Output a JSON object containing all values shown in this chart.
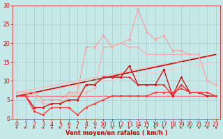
{
  "background_color": "#c5e8e8",
  "grid_color": "#b0cccc",
  "xlabel": "Vent moyen/en rafales ( km/h )",
  "xlabel_color": "#cc0000",
  "xlabel_fontsize": 6,
  "tick_color": "#cc0000",
  "tick_fontsize": 5.5,
  "xlim": [
    -0.5,
    23.5
  ],
  "ylim": [
    0,
    30
  ],
  "yticks": [
    0,
    5,
    10,
    15,
    20,
    25,
    30
  ],
  "xticks": [
    0,
    1,
    2,
    3,
    4,
    5,
    6,
    7,
    8,
    9,
    10,
    11,
    12,
    13,
    14,
    15,
    16,
    17,
    18,
    19,
    20,
    21,
    22,
    23
  ],
  "series": [
    {
      "color": "#ff9999",
      "linewidth": 0.8,
      "marker": "D",
      "markersize": 1.5,
      "x": [
        0,
        1,
        2,
        3,
        4,
        5,
        6,
        7,
        8,
        9,
        10,
        11,
        12,
        13,
        14,
        15,
        16,
        17,
        18,
        19,
        20,
        21,
        22,
        23
      ],
      "y": [
        7,
        7,
        7,
        5,
        5,
        5,
        7,
        7,
        19,
        19,
        22,
        19,
        20,
        21,
        29,
        23,
        21,
        22,
        18,
        18,
        17,
        17,
        10,
        9
      ]
    },
    {
      "color": "#ffaaaa",
      "linewidth": 0.8,
      "marker": "D",
      "markersize": 1.5,
      "x": [
        0,
        1,
        2,
        3,
        4,
        5,
        6,
        7,
        8,
        9,
        10,
        11,
        12,
        13,
        14,
        15,
        16,
        17,
        18,
        19,
        20,
        21,
        22,
        23
      ],
      "y": [
        7,
        7,
        6,
        4,
        4,
        4,
        6,
        7,
        7,
        8,
        19,
        19,
        20,
        19,
        19,
        17,
        17,
        17,
        17,
        17,
        17,
        17,
        10,
        9
      ]
    },
    {
      "color": "#ffbbbb",
      "linewidth": 1.0,
      "marker": null,
      "markersize": 0,
      "x": [
        0,
        23
      ],
      "y": [
        7,
        17
      ]
    },
    {
      "color": "#ffcccc",
      "linewidth": 1.0,
      "marker": null,
      "markersize": 0,
      "x": [
        0,
        23
      ],
      "y": [
        6,
        15
      ]
    },
    {
      "color": "#cc0000",
      "linewidth": 0.9,
      "marker": "s",
      "markersize": 1.8,
      "x": [
        0,
        1,
        2,
        3,
        4,
        5,
        6,
        7,
        8,
        9,
        10,
        11,
        12,
        13,
        14,
        15,
        16,
        17,
        18,
        19,
        20,
        21,
        22,
        23
      ],
      "y": [
        6,
        6,
        3,
        3,
        4,
        4,
        5,
        5,
        9,
        9,
        11,
        11,
        11,
        14,
        9,
        9,
        9,
        13,
        6,
        11,
        7,
        7,
        6,
        6
      ]
    },
    {
      "color": "#dd2222",
      "linewidth": 0.9,
      "marker": "^",
      "markersize": 1.8,
      "x": [
        0,
        1,
        2,
        3,
        4,
        5,
        6,
        7,
        8,
        9,
        10,
        11,
        12,
        13,
        14,
        15,
        16,
        17,
        18,
        19,
        20,
        21,
        22,
        23
      ],
      "y": [
        6,
        6,
        3,
        3,
        4,
        4,
        5,
        5,
        9,
        9,
        11,
        11,
        11,
        11,
        9,
        9,
        9,
        9,
        6,
        9,
        7,
        7,
        6,
        6
      ]
    },
    {
      "color": "#ff2222",
      "linewidth": 0.8,
      "marker": "s",
      "markersize": 1.5,
      "x": [
        0,
        1,
        2,
        3,
        4,
        5,
        6,
        7,
        8,
        9,
        10,
        11,
        12,
        13,
        14,
        15,
        16,
        17,
        18,
        19,
        20,
        21,
        22,
        23
      ],
      "y": [
        6,
        6,
        2,
        1,
        3,
        3,
        3,
        1,
        3,
        4,
        5,
        6,
        6,
        6,
        6,
        6,
        7,
        7,
        7,
        8,
        7,
        7,
        7,
        6
      ]
    },
    {
      "color": "#ff4444",
      "linewidth": 0.8,
      "marker": "v",
      "markersize": 1.5,
      "x": [
        0,
        1,
        2,
        3,
        4,
        5,
        6,
        7,
        8,
        9,
        10,
        11,
        12,
        13,
        14,
        15,
        16,
        17,
        18,
        19,
        20,
        21,
        22,
        23
      ],
      "y": [
        6,
        6,
        2,
        1,
        3,
        3,
        3,
        1,
        3,
        4,
        5,
        6,
        6,
        6,
        6,
        6,
        7,
        7,
        7,
        8,
        7,
        7,
        7,
        6
      ]
    },
    {
      "color": "#cc0000",
      "linewidth": 1.2,
      "marker": null,
      "markersize": 0,
      "x": [
        0,
        23
      ],
      "y": [
        6,
        17
      ]
    },
    {
      "color": "#ff6666",
      "linewidth": 1.0,
      "marker": null,
      "markersize": 0,
      "x": [
        0,
        23
      ],
      "y": [
        6,
        6
      ]
    }
  ],
  "arrow_color": "#cc0000",
  "arrow_directions": [
    45,
    45,
    45,
    135,
    135,
    45,
    135,
    45,
    45,
    135,
    135,
    135,
    45,
    45,
    135,
    135,
    45,
    45,
    45,
    45,
    135,
    135,
    135,
    135
  ]
}
